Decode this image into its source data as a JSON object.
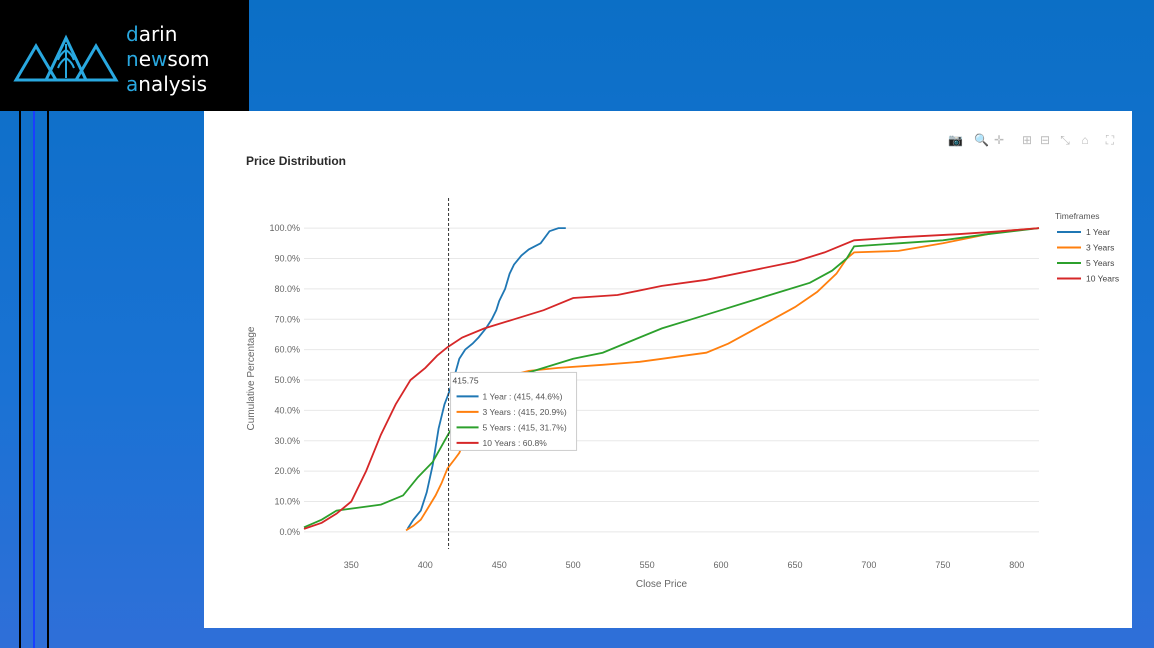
{
  "brand": {
    "line1_accent": "d",
    "line1_rest": "arin",
    "line2_accent1": "n",
    "line2_mid": "e",
    "line2_accent2": "w",
    "line2_rest": "som",
    "line3_accent": "a",
    "line3_rest": "nalysis"
  },
  "toolbar": {
    "icons": [
      "camera-icon",
      "zoom-icon",
      "pan-icon",
      "zoom-in-icon",
      "zoom-out-icon",
      "autoscale-icon",
      "home-icon",
      "fullscreen-icon"
    ]
  },
  "chart_data": {
    "type": "line",
    "title": "Price Distribution",
    "xlabel": "Close Price",
    "ylabel": "Cumulative Percentage",
    "xlim": [
      318,
      815
    ],
    "ylim": [
      -3,
      104
    ],
    "xticks": [
      350,
      400,
      450,
      500,
      550,
      600,
      650,
      700,
      750,
      800
    ],
    "yticks": [
      0,
      10,
      20,
      30,
      40,
      50,
      60,
      70,
      80,
      90,
      100
    ],
    "ytick_labels": [
      "0.0%",
      "10.0%",
      "20.0%",
      "30.0%",
      "40.0%",
      "50.0%",
      "60.0%",
      "70.0%",
      "80.0%",
      "90.0%",
      "100.0%"
    ],
    "grid": true,
    "legend": {
      "title": "Timeframes",
      "placement": "right"
    },
    "series": [
      {
        "name": "1 Year",
        "color": "#1f77b4",
        "points": [
          [
            388,
            1
          ],
          [
            392,
            4
          ],
          [
            397,
            7
          ],
          [
            401,
            13
          ],
          [
            405,
            22
          ],
          [
            409,
            34
          ],
          [
            413,
            42
          ],
          [
            415,
            44.6
          ],
          [
            419,
            50
          ],
          [
            423,
            57
          ],
          [
            427,
            60
          ],
          [
            432,
            62
          ],
          [
            436,
            64
          ],
          [
            441,
            67
          ],
          [
            445,
            70
          ],
          [
            448,
            73
          ],
          [
            450,
            76
          ],
          [
            454,
            80
          ],
          [
            457,
            85
          ],
          [
            460,
            88
          ],
          [
            465,
            91
          ],
          [
            470,
            93
          ],
          [
            478,
            95
          ],
          [
            484,
            99
          ],
          [
            490,
            100
          ],
          [
            495,
            100
          ]
        ]
      },
      {
        "name": "3 Years",
        "color": "#ff7f0e",
        "points": [
          [
            387,
            0.5
          ],
          [
            392,
            2
          ],
          [
            397,
            4
          ],
          [
            402,
            8
          ],
          [
            407,
            12
          ],
          [
            411,
            16
          ],
          [
            415,
            20.9
          ],
          [
            420,
            24
          ],
          [
            423,
            26
          ],
          [
            428,
            32
          ],
          [
            433,
            37
          ],
          [
            438,
            41
          ],
          [
            443,
            44
          ],
          [
            448,
            47
          ],
          [
            455,
            50
          ],
          [
            462,
            52
          ],
          [
            470,
            53
          ],
          [
            490,
            54
          ],
          [
            520,
            55
          ],
          [
            545,
            56
          ],
          [
            560,
            57
          ],
          [
            575,
            58
          ],
          [
            590,
            59
          ],
          [
            605,
            62
          ],
          [
            620,
            66
          ],
          [
            635,
            70
          ],
          [
            650,
            74
          ],
          [
            665,
            79
          ],
          [
            678,
            85
          ],
          [
            685,
            90
          ],
          [
            690,
            92
          ],
          [
            720,
            92.5
          ],
          [
            750,
            95
          ],
          [
            770,
            97
          ],
          [
            790,
            99
          ],
          [
            815,
            100
          ]
        ]
      },
      {
        "name": "5 Years",
        "color": "#2ca02c",
        "points": [
          [
            318,
            1.5
          ],
          [
            330,
            4
          ],
          [
            340,
            7
          ],
          [
            355,
            8
          ],
          [
            370,
            9
          ],
          [
            385,
            12
          ],
          [
            395,
            18
          ],
          [
            405,
            23
          ],
          [
            415,
            31.7
          ],
          [
            425,
            40
          ],
          [
            440,
            45
          ],
          [
            460,
            51
          ],
          [
            480,
            54
          ],
          [
            500,
            57
          ],
          [
            520,
            59
          ],
          [
            540,
            63
          ],
          [
            560,
            67
          ],
          [
            580,
            70
          ],
          [
            600,
            73
          ],
          [
            620,
            76
          ],
          [
            640,
            79
          ],
          [
            660,
            82
          ],
          [
            675,
            86
          ],
          [
            685,
            90
          ],
          [
            690,
            94
          ],
          [
            720,
            95
          ],
          [
            750,
            96
          ],
          [
            780,
            98
          ],
          [
            815,
            100
          ]
        ]
      },
      {
        "name": "10 Years",
        "color": "#d62728",
        "points": [
          [
            318,
            1
          ],
          [
            330,
            3
          ],
          [
            340,
            6
          ],
          [
            350,
            10
          ],
          [
            360,
            20
          ],
          [
            370,
            32
          ],
          [
            380,
            42
          ],
          [
            390,
            50
          ],
          [
            400,
            54
          ],
          [
            408,
            58
          ],
          [
            415,
            60.8
          ],
          [
            425,
            64
          ],
          [
            440,
            67
          ],
          [
            460,
            70
          ],
          [
            480,
            73
          ],
          [
            500,
            77
          ],
          [
            530,
            78
          ],
          [
            560,
            81
          ],
          [
            590,
            83
          ],
          [
            620,
            86
          ],
          [
            650,
            89
          ],
          [
            670,
            92
          ],
          [
            690,
            96
          ],
          [
            720,
            97
          ],
          [
            760,
            98
          ],
          [
            790,
            99
          ],
          [
            815,
            100
          ]
        ]
      }
    ],
    "hover": {
      "x_label": "415.75",
      "lines": [
        "1 Year : (415, 44.6%)",
        "3 Years : (415, 20.9%)",
        "5 Years : (415, 31.7%)",
        "10 Years : 60.8%"
      ],
      "x_value": 415.75
    }
  }
}
